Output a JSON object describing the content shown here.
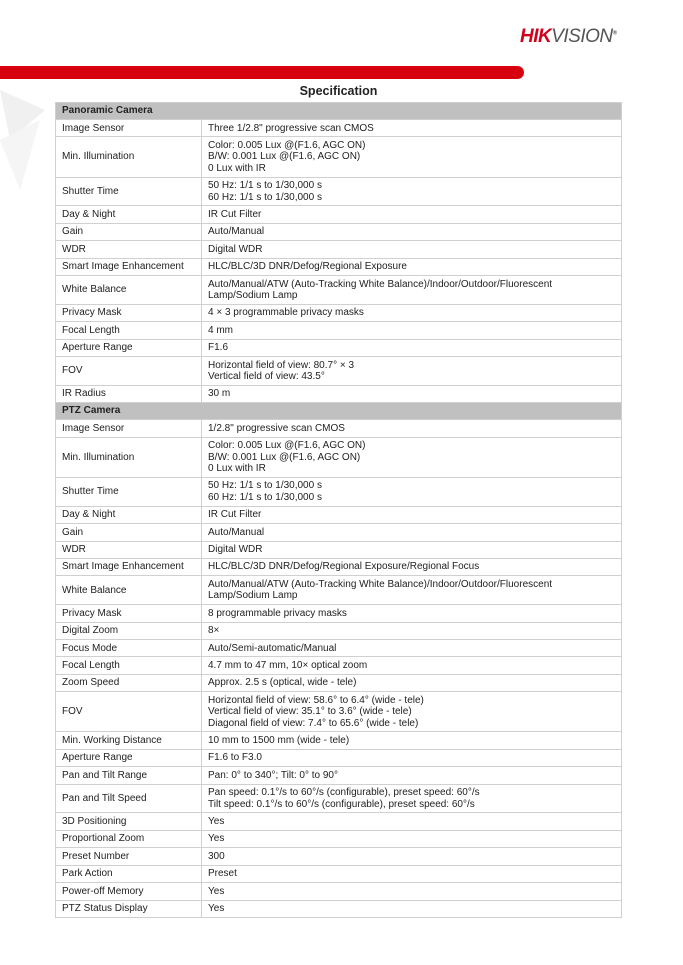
{
  "brand": {
    "logo_red": "HIK",
    "logo_grey": "VISION",
    "accent": "#d7000f"
  },
  "title": "Specification",
  "sections": [
    {
      "name": "Panoramic Camera",
      "rows": [
        {
          "label": "Image Sensor",
          "value": [
            "Three 1/2.8\" progressive scan CMOS"
          ]
        },
        {
          "label": "Min. Illumination",
          "value": [
            "Color: 0.005 Lux @(F1.6, AGC ON)",
            "B/W: 0.001 Lux @(F1.6, AGC ON)",
            "0 Lux with IR"
          ]
        },
        {
          "label": "Shutter Time",
          "value": [
            "50 Hz: 1/1 s to 1/30,000 s",
            "60 Hz: 1/1 s to 1/30,000 s"
          ]
        },
        {
          "label": "Day & Night",
          "value": [
            "IR Cut Filter"
          ]
        },
        {
          "label": "Gain",
          "value": [
            "Auto/Manual"
          ]
        },
        {
          "label": "WDR",
          "value": [
            "Digital WDR"
          ]
        },
        {
          "label": "Smart Image Enhancement",
          "value": [
            "HLC/BLC/3D DNR/Defog/Regional Exposure"
          ]
        },
        {
          "label": "White Balance",
          "value": [
            "Auto/Manual/ATW (Auto-Tracking White Balance)/Indoor/Outdoor/Fluorescent",
            "Lamp/Sodium Lamp"
          ]
        },
        {
          "label": "Privacy Mask",
          "value": [
            "4 × 3 programmable privacy masks"
          ]
        },
        {
          "label": "Focal Length",
          "value": [
            "4 mm"
          ]
        },
        {
          "label": "Aperture Range",
          "value": [
            "F1.6"
          ]
        },
        {
          "label": "FOV",
          "value": [
            "Horizontal field of view: 80.7° × 3",
            "Vertical field of view: 43.5°"
          ]
        },
        {
          "label": "IR Radius",
          "value": [
            "30 m"
          ]
        }
      ]
    },
    {
      "name": "PTZ Camera",
      "rows": [
        {
          "label": "Image Sensor",
          "value": [
            "1/2.8\" progressive scan CMOS"
          ]
        },
        {
          "label": "Min. Illumination",
          "value": [
            "Color: 0.005 Lux @(F1.6, AGC ON)",
            "B/W: 0.001 Lux @(F1.6, AGC ON)",
            "0 Lux with IR"
          ]
        },
        {
          "label": "Shutter Time",
          "value": [
            "50 Hz: 1/1 s to 1/30,000 s",
            "60 Hz: 1/1 s to 1/30,000 s"
          ]
        },
        {
          "label": "Day & Night",
          "value": [
            "IR Cut Filter"
          ]
        },
        {
          "label": "Gain",
          "value": [
            "Auto/Manual"
          ]
        },
        {
          "label": "WDR",
          "value": [
            "Digital WDR"
          ]
        },
        {
          "label": "Smart Image Enhancement",
          "value": [
            "HLC/BLC/3D DNR/Defog/Regional Exposure/Regional Focus"
          ]
        },
        {
          "label": "White Balance",
          "value": [
            "Auto/Manual/ATW (Auto-Tracking White Balance)/Indoor/Outdoor/Fluorescent",
            "Lamp/Sodium Lamp"
          ]
        },
        {
          "label": "Privacy Mask",
          "value": [
            "8 programmable privacy masks"
          ]
        },
        {
          "label": "Digital Zoom",
          "value": [
            "8×"
          ]
        },
        {
          "label": "Focus Mode",
          "value": [
            "Auto/Semi-automatic/Manual"
          ]
        },
        {
          "label": "Focal Length",
          "value": [
            "4.7 mm to 47 mm, 10× optical zoom"
          ]
        },
        {
          "label": "Zoom Speed",
          "value": [
            "Approx. 2.5 s (optical, wide - tele)"
          ]
        },
        {
          "label": "FOV",
          "value": [
            "Horizontal field of view: 58.6° to 6.4° (wide - tele)",
            "Vertical field of view: 35.1° to 3.6° (wide - tele)",
            "Diagonal field of view: 7.4° to 65.6° (wide - tele)"
          ]
        },
        {
          "label": "Min. Working Distance",
          "value": [
            "10 mm to 1500 mm (wide - tele)"
          ]
        },
        {
          "label": "Aperture Range",
          "value": [
            "F1.6 to F3.0"
          ]
        },
        {
          "label": "Pan and Tilt Range",
          "value": [
            "Pan: 0° to 340°; Tilt: 0° to 90°"
          ]
        },
        {
          "label": "Pan and Tilt Speed",
          "value": [
            "Pan speed: 0.1°/s to 60°/s (configurable), preset speed: 60°/s",
            "Tilt speed: 0.1°/s to 60°/s (configurable), preset speed: 60°/s"
          ]
        },
        {
          "label": "3D Positioning",
          "value": [
            "Yes"
          ]
        },
        {
          "label": "Proportional Zoom",
          "value": [
            "Yes"
          ]
        },
        {
          "label": "Preset Number",
          "value": [
            "300"
          ]
        },
        {
          "label": "Park Action",
          "value": [
            "Preset"
          ]
        },
        {
          "label": "Power-off Memory",
          "value": [
            "Yes"
          ]
        },
        {
          "label": "PTZ Status Display",
          "value": [
            "Yes"
          ]
        }
      ]
    }
  ]
}
